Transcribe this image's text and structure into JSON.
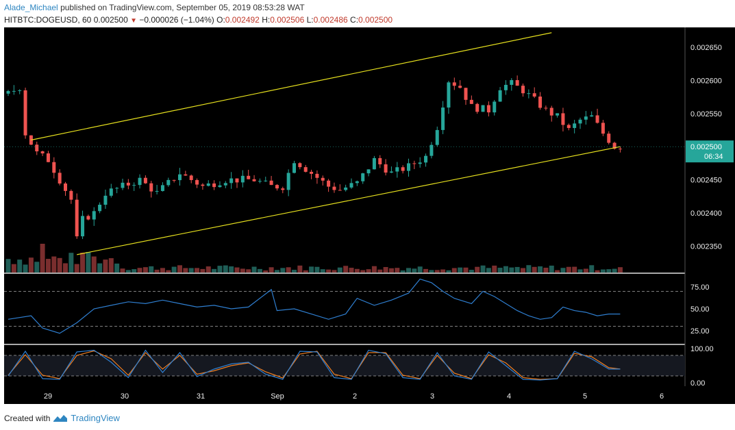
{
  "header": {
    "author": "Alade_Michael",
    "published_text": "published on TradingView.com, September 05, 2019 08:53:28 WAT",
    "symbol": "HITBTC:DOGEUSD, 60",
    "last": "0.002500",
    "change": "−0.000026 (−1.04%)",
    "o_label": "O:",
    "o_value": "0.002492",
    "h_label": "H:",
    "h_value": "0.002506",
    "l_label": "L:",
    "l_value": "0.002486",
    "c_label": "C:",
    "c_value": "0.002500"
  },
  "footer": {
    "created_text": "Created with",
    "brand": "TradingView",
    "logo_icon": "tradingview-logo-icon"
  },
  "colors": {
    "background": "#000000",
    "up": "#26a69a",
    "down": "#ef5350",
    "channel": "#e8e21e",
    "rsi": "#2f7fd1",
    "stoch_k": "#2f7fd1",
    "stoch_d": "#f07f22",
    "axis_text": "#eeeeee",
    "price_tag": "#26a69a"
  },
  "chart_data": {
    "type": "candlestick",
    "price_axis": {
      "ticks": [
        "0.002350",
        "0.002400",
        "0.002450",
        "0.002500",
        "0.002550",
        "0.002600",
        "0.002650"
      ],
      "range": [
        0.00231,
        0.00268
      ]
    },
    "last_price_label": "0.002500",
    "countdown_label": "06:34",
    "x_ticks": [
      "29",
      "30",
      "31",
      "Sep",
      "2",
      "3",
      "4",
      "5",
      "6"
    ],
    "price_path": [
      [
        0,
        0.00258
      ],
      [
        2,
        0.00259
      ],
      [
        3,
        0.00252
      ],
      [
        5,
        0.00249
      ],
      [
        7,
        0.00248
      ],
      [
        9,
        0.00245
      ],
      [
        11,
        0.00242
      ],
      [
        12,
        0.00236
      ],
      [
        13,
        0.00239
      ],
      [
        15,
        0.0024
      ],
      [
        17,
        0.00243
      ],
      [
        20,
        0.00244
      ],
      [
        23,
        0.00245
      ],
      [
        26,
        0.00243
      ],
      [
        30,
        0.00246
      ],
      [
        34,
        0.00244
      ],
      [
        38,
        0.00245
      ],
      [
        43,
        0.00245
      ],
      [
        46,
        0.00244
      ],
      [
        48,
        0.00244
      ],
      [
        50,
        0.00248
      ],
      [
        53,
        0.00246
      ],
      [
        56,
        0.00244
      ],
      [
        58,
        0.002435
      ],
      [
        61,
        0.002445
      ],
      [
        64,
        0.00248
      ],
      [
        67,
        0.00246
      ],
      [
        70,
        0.00247
      ],
      [
        73,
        0.002485
      ],
      [
        75,
        0.00253
      ],
      [
        77,
        0.0026
      ],
      [
        79,
        0.00259
      ],
      [
        81,
        0.00256
      ],
      [
        84,
        0.002555
      ],
      [
        86,
        0.00259
      ],
      [
        88,
        0.002595
      ],
      [
        90,
        0.002585
      ],
      [
        92,
        0.00257
      ],
      [
        94,
        0.002555
      ],
      [
        96,
        0.002545
      ],
      [
        98,
        0.002525
      ],
      [
        100,
        0.00254
      ],
      [
        102,
        0.002545
      ],
      [
        104,
        0.00252
      ],
      [
        106,
        0.0025
      ],
      [
        107,
        0.0025
      ]
    ],
    "channel_upper": {
      "from": [
        4,
        0.00251
      ],
      "to": [
        95,
        0.002672
      ]
    },
    "channel_lower": {
      "from": [
        12,
        0.002337
      ],
      "to": [
        107,
        0.0025
      ]
    },
    "volume": {
      "n": 108,
      "pattern": "high early, tapering"
    },
    "rsi": {
      "ticks": [
        "75.00",
        "50.00",
        "25.00"
      ],
      "bands": [
        70,
        30
      ],
      "range": [
        10,
        90
      ],
      "values": [
        [
          0,
          38
        ],
        [
          4,
          42
        ],
        [
          6,
          28
        ],
        [
          9,
          22
        ],
        [
          12,
          34
        ],
        [
          15,
          50
        ],
        [
          18,
          54
        ],
        [
          21,
          58
        ],
        [
          24,
          56
        ],
        [
          27,
          60
        ],
        [
          30,
          56
        ],
        [
          33,
          52
        ],
        [
          36,
          54
        ],
        [
          39,
          50
        ],
        [
          42,
          52
        ],
        [
          46,
          72
        ],
        [
          47,
          48
        ],
        [
          50,
          50
        ],
        [
          53,
          44
        ],
        [
          56,
          38
        ],
        [
          59,
          44
        ],
        [
          61,
          62
        ],
        [
          64,
          54
        ],
        [
          67,
          60
        ],
        [
          70,
          68
        ],
        [
          72,
          84
        ],
        [
          74,
          80
        ],
        [
          76,
          70
        ],
        [
          78,
          62
        ],
        [
          81,
          56
        ],
        [
          83,
          70
        ],
        [
          85,
          64
        ],
        [
          87,
          56
        ],
        [
          89,
          48
        ],
        [
          91,
          42
        ],
        [
          93,
          38
        ],
        [
          95,
          40
        ],
        [
          97,
          52
        ],
        [
          99,
          48
        ],
        [
          101,
          46
        ],
        [
          103,
          42
        ],
        [
          105,
          44
        ],
        [
          107,
          44
        ]
      ]
    },
    "stoch": {
      "ticks": [
        "100.00",
        "0.00"
      ],
      "bands": [
        80,
        20
      ],
      "range": [
        -10,
        110
      ],
      "k": [
        [
          0,
          20
        ],
        [
          3,
          92
        ],
        [
          6,
          12
        ],
        [
          9,
          10
        ],
        [
          12,
          90
        ],
        [
          15,
          95
        ],
        [
          18,
          60
        ],
        [
          21,
          15
        ],
        [
          24,
          95
        ],
        [
          27,
          30
        ],
        [
          30,
          88
        ],
        [
          33,
          18
        ],
        [
          36,
          40
        ],
        [
          39,
          55
        ],
        [
          42,
          60
        ],
        [
          45,
          25
        ],
        [
          48,
          10
        ],
        [
          51,
          92
        ],
        [
          54,
          90
        ],
        [
          57,
          15
        ],
        [
          60,
          10
        ],
        [
          63,
          95
        ],
        [
          66,
          85
        ],
        [
          69,
          15
        ],
        [
          72,
          10
        ],
        [
          75,
          88
        ],
        [
          78,
          20
        ],
        [
          81,
          10
        ],
        [
          84,
          90
        ],
        [
          87,
          50
        ],
        [
          90,
          10
        ],
        [
          93,
          8
        ],
        [
          96,
          12
        ],
        [
          99,
          92
        ],
        [
          102,
          70
        ],
        [
          105,
          40
        ],
        [
          107,
          40
        ]
      ],
      "d": [
        [
          0,
          22
        ],
        [
          3,
          82
        ],
        [
          6,
          22
        ],
        [
          9,
          12
        ],
        [
          12,
          80
        ],
        [
          15,
          93
        ],
        [
          18,
          70
        ],
        [
          21,
          22
        ],
        [
          24,
          88
        ],
        [
          27,
          40
        ],
        [
          30,
          80
        ],
        [
          33,
          25
        ],
        [
          36,
          35
        ],
        [
          39,
          50
        ],
        [
          42,
          58
        ],
        [
          45,
          32
        ],
        [
          48,
          14
        ],
        [
          51,
          84
        ],
        [
          54,
          92
        ],
        [
          57,
          25
        ],
        [
          60,
          12
        ],
        [
          63,
          88
        ],
        [
          66,
          88
        ],
        [
          69,
          22
        ],
        [
          72,
          12
        ],
        [
          75,
          80
        ],
        [
          78,
          28
        ],
        [
          81,
          12
        ],
        [
          84,
          82
        ],
        [
          87,
          58
        ],
        [
          90,
          15
        ],
        [
          93,
          10
        ],
        [
          96,
          12
        ],
        [
          99,
          86
        ],
        [
          102,
          76
        ],
        [
          105,
          44
        ],
        [
          107,
          40
        ]
      ]
    }
  }
}
